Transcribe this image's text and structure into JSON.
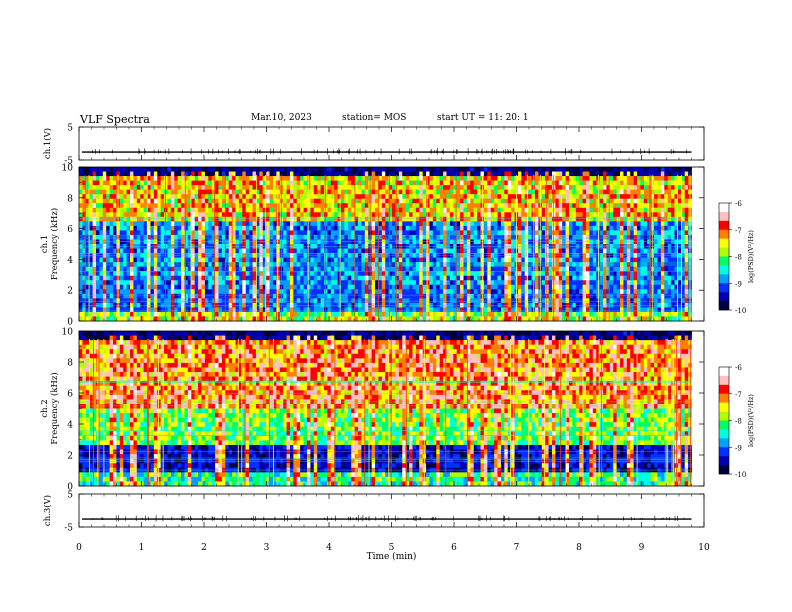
{
  "header": {
    "title": "VLF Spectra",
    "date": "Mar.10, 2023",
    "station": "station= MOS",
    "start_ut": "start  UT =   11: 20: 1"
  },
  "colors": {
    "palette": [
      "#000040",
      "#0000b0",
      "#0030ff",
      "#00a0ff",
      "#00ffe0",
      "#00ff60",
      "#b0ff00",
      "#ffff00",
      "#ff8000",
      "#ff0000",
      "#ffc0c0",
      "#ffffff"
    ]
  },
  "chart_data": [
    {
      "type": "line",
      "panel": "ch.1 waveform",
      "ylabel": "ch.1(V)",
      "yticks": [
        "5",
        "-5"
      ],
      "ylim": [
        -5,
        5
      ],
      "xlim": [
        0,
        10
      ],
      "baseline": -2.6,
      "description_value": "near-constant trace with small spikes"
    },
    {
      "type": "heatmap",
      "panel": "ch.1 spectrogram",
      "ylabel_line1": "ch.1",
      "ylabel_line2": "Frequency (kHz)",
      "ylim": [
        0,
        10
      ],
      "yticks": [
        "0",
        "2",
        "4",
        "6",
        "8",
        "10"
      ],
      "xlim": [
        0,
        9.8
      ],
      "colorbar": {
        "label": "log(PSD)(V²/Hz)",
        "range": [
          -10,
          -6
        ],
        "ticks": [
          "-6",
          "-7",
          "-8",
          "-9",
          "-10"
        ]
      }
    },
    {
      "type": "heatmap",
      "panel": "ch.2 spectrogram",
      "ylabel_line1": "ch.2",
      "ylabel_line2": "Frequency (kHz)",
      "ylim": [
        0,
        10
      ],
      "yticks": [
        "0",
        "2",
        "4",
        "6",
        "8",
        "10"
      ],
      "xlim": [
        0,
        9.8
      ],
      "colorbar": {
        "label": "log(PSD)(V²/Hz)",
        "range": [
          -10,
          -6
        ],
        "ticks": [
          "-6",
          "-7",
          "-8",
          "-9",
          "-10"
        ]
      }
    },
    {
      "type": "line",
      "panel": "ch.3 waveform",
      "ylabel": "ch.3(V)",
      "yticks": [
        "5",
        "-5"
      ],
      "ylim": [
        -5,
        5
      ],
      "xlim": [
        0,
        10
      ],
      "baseline": -2.6,
      "xlabel": "Time (min)",
      "xticks": [
        "0",
        "1",
        "2",
        "3",
        "4",
        "5",
        "6",
        "7",
        "8",
        "9",
        "10"
      ]
    }
  ]
}
